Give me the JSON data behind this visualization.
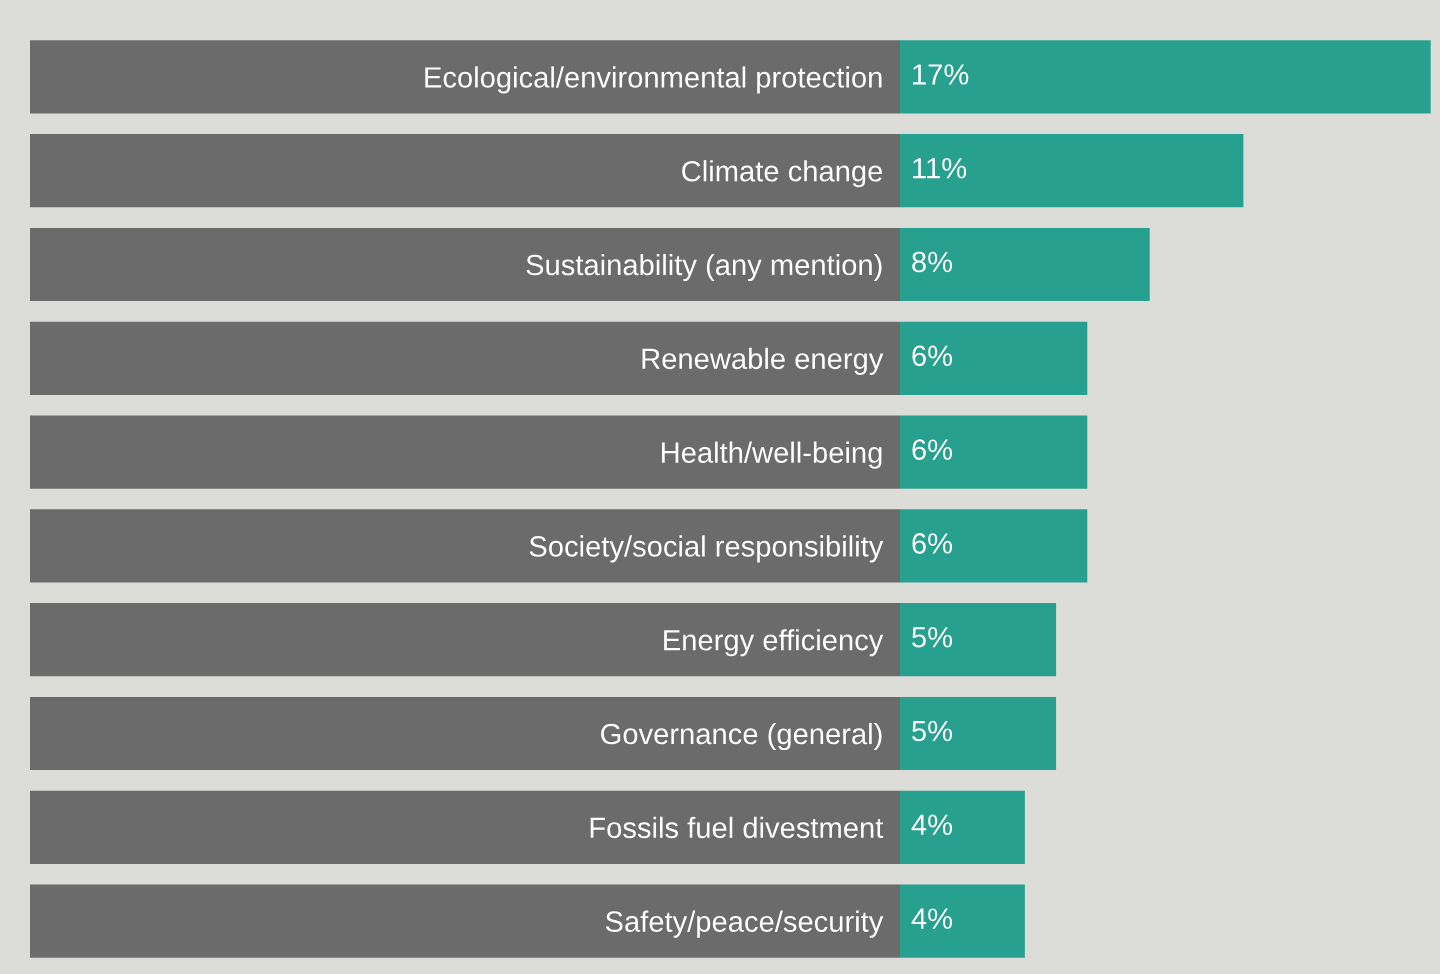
{
  "chart_data": {
    "type": "bar",
    "orientation": "horizontal",
    "categories": [
      "Ecological/environmental protection",
      "Climate change",
      "Sustainability (any mention)",
      "Renewable energy",
      "Health/well-being",
      "Society/social responsibility",
      "Energy efficiency",
      "Governance (general)",
      "Fossils fuel divestment",
      "Safety/peace/security"
    ],
    "values": [
      17,
      11,
      8,
      6,
      6,
      6,
      5,
      5,
      4,
      4
    ],
    "value_labels": [
      "17%",
      "11%",
      "8%",
      "6%",
      "6%",
      "6%",
      "5%",
      "5%",
      "4%",
      "4%"
    ],
    "color": "#27a08f",
    "grid": false,
    "legend": false
  }
}
